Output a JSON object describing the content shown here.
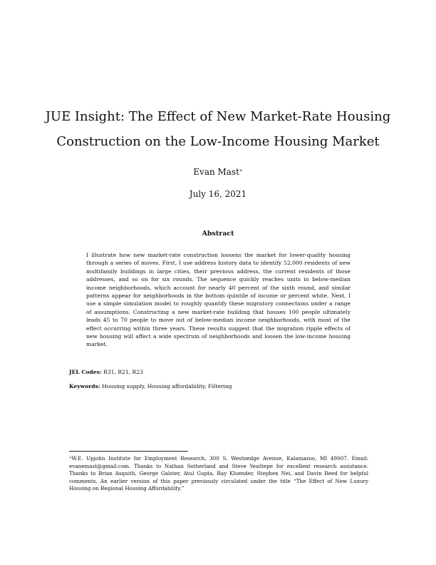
{
  "title": {
    "line1": "JUE Insight: The Effect of New Market-Rate Housing",
    "line2": "Construction on the Low-Income Housing Market"
  },
  "author": {
    "name": "Evan Mast",
    "mark": "∗"
  },
  "date": "July 16, 2021",
  "abstract": {
    "heading": "Abstract",
    "text": "I illustrate how new market-rate construction loosens the market for lower-quality housing through a series of moves. First, I use address history data to identify 52,000 residents of new multifamily buildings in large cities, their previous address, the current residents of those addresses, and so on for six rounds. The sequence quickly reaches units in below-median income neighborhoods, which account for nearly 40 percent of the sixth round, and similar patterns appear for neighborhoods in the bottom quintile of income or percent white. Next, I use a simple simulation model to roughly quantify these migratory connections under a range of assumptions. Constructing a new market-rate building that houses 100 people ultimately leads 45 to 70 people to move out of below-median income neighborhoods, with most of the effect occurring within three years. These results suggest that the migration ripple effects of new housing will affect a wide spectrum of neighborhoods and loosen the low-income housing market."
  },
  "jel": {
    "label": "JEL Codes:",
    "value": "R31, R21, R23"
  },
  "keywords": {
    "label": "Keywords:",
    "value": "Housing supply, Housing affordability, Filtering"
  },
  "footnote": {
    "mark": "∗",
    "text": "W.E. Upjohn Institute for Employment Research, 300 S. Westnedge Avenue, Kalamazoo, MI 49007. Email: evanemast@gmail.com. Thanks to Nathan Sotherland and Steve Yesiltepe for excellent research assistance. Thanks to Brian Asquith, George Galster, Atul Gupta, Ray Kluender, Stephen Nei, and Davin Reed for helpful comments. An earlier version of this paper previously circulated under the title “The Effect of New Luxury Housing on Regional Housing Affordability.”"
  }
}
